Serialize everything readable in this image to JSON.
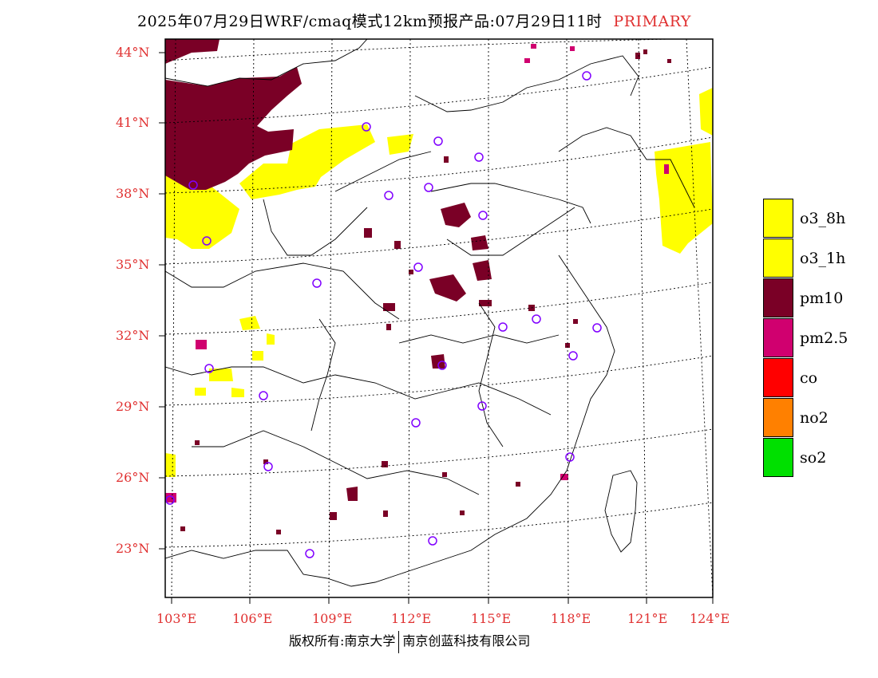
{
  "title": {
    "text": "2025年07月29日WRF/cmaq模式12km预报产品:07月29日11时",
    "tag": "PRIMARY"
  },
  "lat_labels": [
    "44°N",
    "41°N",
    "38°N",
    "35°N",
    "32°N",
    "29°N",
    "26°N",
    "23°N"
  ],
  "lon_labels": [
    "103°E",
    "106°E",
    "109°E",
    "112°E",
    "115°E",
    "118°E",
    "121°E",
    "124°E"
  ],
  "legend": [
    {
      "label": "o3_8h",
      "color": "#ffff00"
    },
    {
      "label": "o3_1h",
      "color": "#ffff00"
    },
    {
      "label": "pm10",
      "color": "#7a0026"
    },
    {
      "label": "pm2.5",
      "color": "#d0006f"
    },
    {
      "label": "co",
      "color": "#ff0000"
    },
    {
      "label": "no2",
      "color": "#ff8000"
    },
    {
      "label": "so2",
      "color": "#00e000"
    }
  ],
  "footer": {
    "left": "版权所有:南京大学",
    "right": "南京创蓝科技有限公司"
  }
}
